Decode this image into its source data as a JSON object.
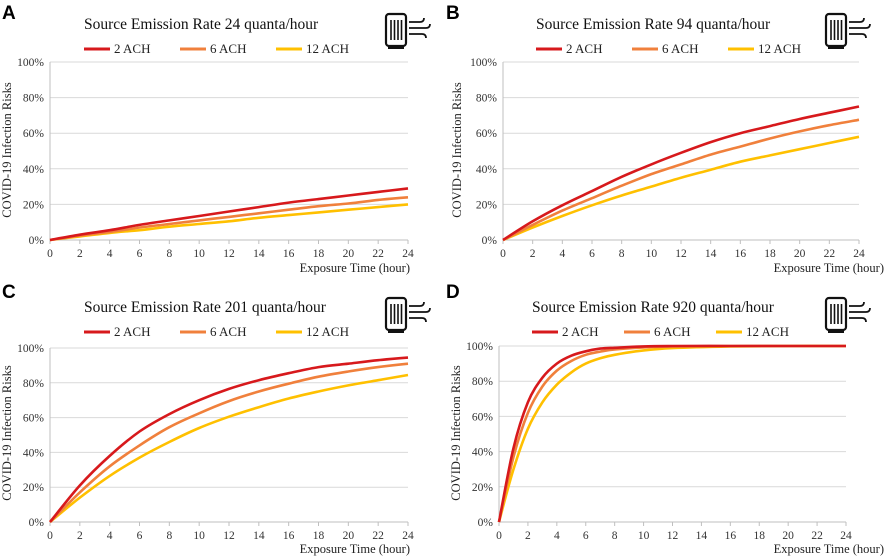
{
  "series_style": [
    {
      "name": "2 ACH",
      "color": "#d7191c"
    },
    {
      "name": "6 ACH",
      "color": "#f0803c"
    },
    {
      "name": "12 ACH",
      "color": "#ffc000"
    }
  ],
  "icon": "air-purifier-icon",
  "chart_data": [
    {
      "panel": "A",
      "type": "line",
      "title": "Source Emission Rate 24 quanta/hour",
      "xlabel": "Exposure Time (hour)",
      "ylabel": "COVID-19 Infection Risks",
      "xlim": [
        0,
        24
      ],
      "ylim": [
        0,
        1
      ],
      "x_ticks": [
        0,
        2,
        4,
        6,
        8,
        10,
        12,
        14,
        16,
        18,
        20,
        22,
        24
      ],
      "y_ticks": [
        "0%",
        "20%",
        "40%",
        "60%",
        "80%",
        "100%"
      ],
      "x": [
        0,
        2,
        4,
        6,
        8,
        10,
        12,
        14,
        16,
        18,
        20,
        22,
        24
      ],
      "series": [
        {
          "name": "2 ACH",
          "values": [
            0,
            0.03,
            0.055,
            0.085,
            0.11,
            0.135,
            0.16,
            0.185,
            0.21,
            0.23,
            0.25,
            0.27,
            0.29
          ]
        },
        {
          "name": "6 ACH",
          "values": [
            0,
            0.025,
            0.045,
            0.07,
            0.09,
            0.11,
            0.13,
            0.15,
            0.17,
            0.19,
            0.205,
            0.225,
            0.24
          ]
        },
        {
          "name": "12 ACH",
          "values": [
            0,
            0.02,
            0.04,
            0.055,
            0.075,
            0.09,
            0.105,
            0.125,
            0.14,
            0.155,
            0.17,
            0.185,
            0.2
          ]
        }
      ]
    },
    {
      "panel": "B",
      "type": "line",
      "title": "Source Emission Rate 94 quanta/hour",
      "xlabel": "Exposure Time (hour)",
      "ylabel": "COVID-19 Infection Risks",
      "xlim": [
        0,
        24
      ],
      "ylim": [
        0,
        1
      ],
      "x_ticks": [
        0,
        2,
        4,
        6,
        8,
        10,
        12,
        14,
        16,
        18,
        20,
        22,
        24
      ],
      "y_ticks": [
        "0%",
        "20%",
        "40%",
        "60%",
        "80%",
        "100%"
      ],
      "x": [
        0,
        2,
        4,
        6,
        8,
        10,
        12,
        14,
        16,
        18,
        20,
        22,
        24
      ],
      "series": [
        {
          "name": "2 ACH",
          "values": [
            0,
            0.105,
            0.195,
            0.275,
            0.355,
            0.425,
            0.49,
            0.55,
            0.6,
            0.64,
            0.68,
            0.715,
            0.75
          ]
        },
        {
          "name": "6 ACH",
          "values": [
            0,
            0.085,
            0.165,
            0.235,
            0.305,
            0.37,
            0.425,
            0.48,
            0.525,
            0.57,
            0.61,
            0.645,
            0.675
          ]
        },
        {
          "name": "12 ACH",
          "values": [
            0,
            0.07,
            0.135,
            0.195,
            0.25,
            0.3,
            0.35,
            0.395,
            0.44,
            0.475,
            0.51,
            0.545,
            0.58
          ]
        }
      ]
    },
    {
      "panel": "C",
      "type": "line",
      "title": "Source Emission Rate 201 quanta/hour",
      "xlabel": "Exposure Time (hour)",
      "ylabel": "COVID-19 Infection Risks",
      "xlim": [
        0,
        24
      ],
      "ylim": [
        0,
        1
      ],
      "x_ticks": [
        0,
        2,
        4,
        6,
        8,
        10,
        12,
        14,
        16,
        18,
        20,
        22,
        24
      ],
      "y_ticks": [
        "0%",
        "20%",
        "40%",
        "60%",
        "80%",
        "100%"
      ],
      "x": [
        0,
        2,
        4,
        6,
        8,
        10,
        12,
        14,
        16,
        18,
        20,
        22,
        24
      ],
      "series": [
        {
          "name": "2 ACH",
          "values": [
            0,
            0.21,
            0.38,
            0.52,
            0.62,
            0.7,
            0.765,
            0.815,
            0.855,
            0.89,
            0.91,
            0.93,
            0.945
          ]
        },
        {
          "name": "6 ACH",
          "values": [
            0,
            0.17,
            0.32,
            0.44,
            0.545,
            0.625,
            0.695,
            0.75,
            0.795,
            0.835,
            0.865,
            0.89,
            0.91
          ]
        },
        {
          "name": "12 ACH",
          "values": [
            0,
            0.14,
            0.265,
            0.37,
            0.46,
            0.54,
            0.605,
            0.66,
            0.71,
            0.75,
            0.785,
            0.815,
            0.845
          ]
        }
      ]
    },
    {
      "panel": "D",
      "type": "line",
      "title": "Source Emission Rate 920 quanta/hour",
      "xlabel": "Exposure Time (hour)",
      "ylabel": "COVID-19 Infection Risks",
      "xlim": [
        0,
        24
      ],
      "ylim": [
        0,
        1
      ],
      "x_ticks": [
        0,
        2,
        4,
        6,
        8,
        10,
        12,
        14,
        16,
        18,
        20,
        22,
        24
      ],
      "y_ticks": [
        "0%",
        "20%",
        "40%",
        "60%",
        "80%",
        "100%"
      ],
      "x": [
        0,
        1,
        2,
        3,
        4,
        5,
        6,
        7,
        8,
        10,
        12,
        16,
        20,
        24
      ],
      "series": [
        {
          "name": "2 ACH",
          "values": [
            0,
            0.42,
            0.68,
            0.82,
            0.9,
            0.945,
            0.97,
            0.985,
            0.99,
            0.998,
            1.0,
            1.0,
            1.0,
            1.0
          ]
        },
        {
          "name": "6 ACH",
          "values": [
            0,
            0.37,
            0.62,
            0.77,
            0.86,
            0.915,
            0.95,
            0.968,
            0.98,
            0.992,
            0.997,
            1.0,
            1.0,
            1.0
          ]
        },
        {
          "name": "12 ACH",
          "values": [
            0,
            0.3,
            0.53,
            0.68,
            0.78,
            0.85,
            0.9,
            0.93,
            0.95,
            0.975,
            0.988,
            0.997,
            1.0,
            1.0
          ]
        }
      ]
    }
  ]
}
